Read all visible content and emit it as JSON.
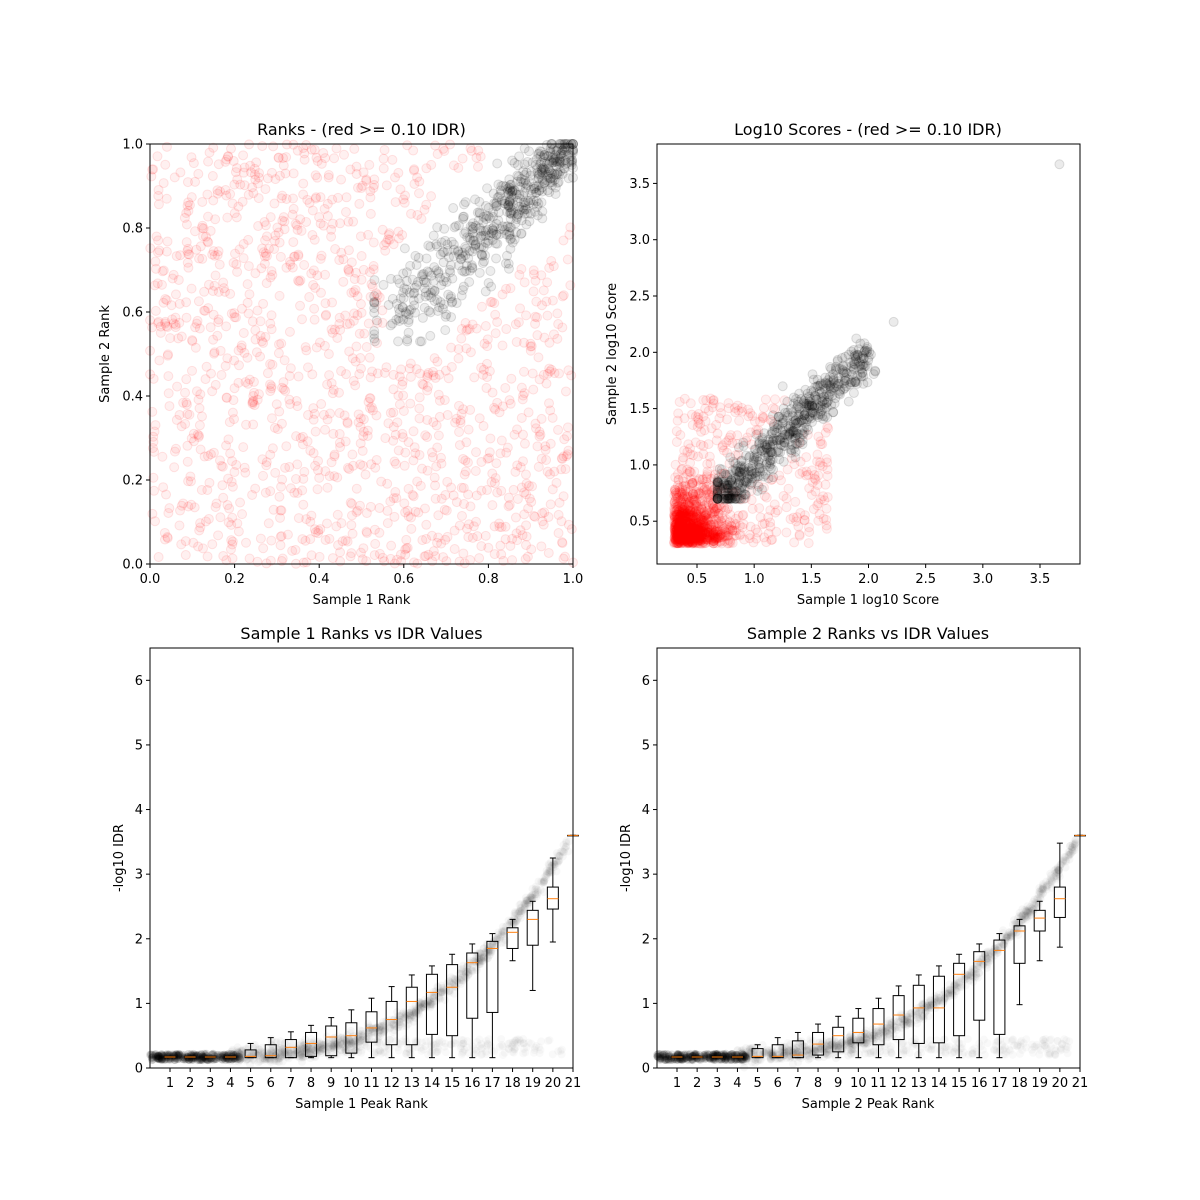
{
  "chart_data": [
    {
      "type": "scatter",
      "title": "Ranks - (red >= 0.10 IDR)",
      "xlabel": "Sample 1 Rank",
      "ylabel": "Sample 2 Rank",
      "xlim": [
        0,
        1
      ],
      "ylim": [
        0,
        1
      ],
      "xticks": [
        "0.0",
        "0.2",
        "0.4",
        "0.6",
        "0.8",
        "1.0"
      ],
      "yticks": [
        "0.0",
        "0.2",
        "0.4",
        "0.6",
        "0.8",
        "1.0"
      ],
      "grid": false,
      "series": [
        {
          "color": "#ff0000",
          "alpha": 0.06,
          "description_values": "scattered uniformly across [0,1]x[0,1] excluding diagonal band",
          "approx_count": 1400
        },
        {
          "color": "#000000",
          "alpha": 0.08,
          "points_from": [
            0.55,
            0.55
          ],
          "points_to": [
            1.0,
            1.0
          ],
          "approx_count": 600
        }
      ]
    },
    {
      "type": "scatter",
      "title": "Log10 Scores - (red >= 0.10 IDR)",
      "xlabel": "Sample 1 log10 Score",
      "ylabel": "Sample 2 log10 Score",
      "xlim": [
        0.15,
        3.85
      ],
      "ylim": [
        0.12,
        3.85
      ],
      "xticks": [
        "0.5",
        "1.0",
        "1.5",
        "2.0",
        "2.5",
        "3.0",
        "3.5"
      ],
      "yticks": [
        "0.5",
        "1.0",
        "1.5",
        "2.0",
        "2.5",
        "3.0",
        "3.5"
      ],
      "grid": false,
      "series": [
        {
          "color": "#ff0000",
          "alpha": 0.06,
          "x_range": [
            0.3,
            2.0
          ],
          "y_range": [
            0.3,
            2.0
          ],
          "dense_near": [
            0.45,
            0.45
          ]
        },
        {
          "color": "#000000",
          "alpha": 0.08,
          "points_from": [
            0.7,
            0.7
          ],
          "points_to": [
            2.0,
            2.0
          ],
          "outliers": [
            [
              2.22,
              2.27
            ],
            [
              3.67,
              3.67
            ]
          ]
        }
      ]
    },
    {
      "type": "box",
      "title": "Sample 1 Ranks vs IDR Values",
      "xlabel": "Sample 1 Peak Rank",
      "ylabel": "-log10 IDR",
      "categories": [
        "1",
        "2",
        "3",
        "4",
        "5",
        "6",
        "7",
        "8",
        "9",
        "10",
        "11",
        "12",
        "13",
        "14",
        "15",
        "16",
        "17",
        "18",
        "19",
        "20",
        "21"
      ],
      "ylim": [
        0,
        6.5
      ],
      "yticks": [
        "0",
        "1",
        "2",
        "3",
        "4",
        "5",
        "6"
      ],
      "boxes": [
        {
          "whislo": 0.16,
          "q1": 0.16,
          "med": 0.17,
          "q3": 0.18,
          "whishi": 0.18
        },
        {
          "whislo": 0.16,
          "q1": 0.16,
          "med": 0.17,
          "q3": 0.18,
          "whishi": 0.18
        },
        {
          "whislo": 0.16,
          "q1": 0.16,
          "med": 0.17,
          "q3": 0.18,
          "whishi": 0.18
        },
        {
          "whislo": 0.16,
          "q1": 0.16,
          "med": 0.17,
          "q3": 0.18,
          "whishi": 0.18
        },
        {
          "whislo": 0.16,
          "q1": 0.16,
          "med": 0.18,
          "q3": 0.28,
          "whishi": 0.38
        },
        {
          "whislo": 0.16,
          "q1": 0.16,
          "med": 0.19,
          "q3": 0.36,
          "whishi": 0.47
        },
        {
          "whislo": 0.16,
          "q1": 0.16,
          "med": 0.32,
          "q3": 0.44,
          "whishi": 0.56
        },
        {
          "whislo": 0.16,
          "q1": 0.18,
          "med": 0.38,
          "q3": 0.55,
          "whishi": 0.66
        },
        {
          "whislo": 0.16,
          "q1": 0.19,
          "med": 0.48,
          "q3": 0.65,
          "whishi": 0.78
        },
        {
          "whislo": 0.16,
          "q1": 0.23,
          "med": 0.5,
          "q3": 0.7,
          "whishi": 0.9
        },
        {
          "whislo": 0.16,
          "q1": 0.4,
          "med": 0.62,
          "q3": 0.87,
          "whishi": 1.08
        },
        {
          "whislo": 0.16,
          "q1": 0.36,
          "med": 0.75,
          "q3": 1.03,
          "whishi": 1.26
        },
        {
          "whislo": 0.16,
          "q1": 0.36,
          "med": 1.03,
          "q3": 1.25,
          "whishi": 1.44
        },
        {
          "whislo": 0.16,
          "q1": 0.52,
          "med": 1.17,
          "q3": 1.45,
          "whishi": 1.58
        },
        {
          "whislo": 0.16,
          "q1": 0.5,
          "med": 1.25,
          "q3": 1.6,
          "whishi": 1.76
        },
        {
          "whislo": 0.16,
          "q1": 0.77,
          "med": 1.63,
          "q3": 1.78,
          "whishi": 1.92
        },
        {
          "whislo": 0.16,
          "q1": 0.86,
          "med": 1.85,
          "q3": 1.96,
          "whishi": 2.08
        },
        {
          "whislo": 1.66,
          "q1": 1.85,
          "med": 2.1,
          "q3": 2.17,
          "whishi": 2.3
        },
        {
          "whislo": 1.2,
          "q1": 1.9,
          "med": 2.3,
          "q3": 2.44,
          "whishi": 2.58
        },
        {
          "whislo": 1.95,
          "q1": 2.46,
          "med": 2.62,
          "q3": 2.8,
          "whishi": 3.25
        },
        {
          "whislo": 3.6,
          "q1": 3.6,
          "med": 3.6,
          "q3": 3.6,
          "whishi": 3.6
        }
      ]
    },
    {
      "type": "box",
      "title": "Sample 2 Ranks vs IDR Values",
      "xlabel": "Sample 2 Peak Rank",
      "ylabel": "-log10 IDR",
      "categories": [
        "1",
        "2",
        "3",
        "4",
        "5",
        "6",
        "7",
        "8",
        "9",
        "10",
        "11",
        "12",
        "13",
        "14",
        "15",
        "16",
        "17",
        "18",
        "19",
        "20",
        "21"
      ],
      "ylim": [
        0,
        6.5
      ],
      "yticks": [
        "0",
        "1",
        "2",
        "3",
        "4",
        "5",
        "6"
      ],
      "boxes": [
        {
          "whislo": 0.16,
          "q1": 0.16,
          "med": 0.17,
          "q3": 0.18,
          "whishi": 0.18
        },
        {
          "whislo": 0.16,
          "q1": 0.16,
          "med": 0.17,
          "q3": 0.18,
          "whishi": 0.18
        },
        {
          "whislo": 0.16,
          "q1": 0.16,
          "med": 0.17,
          "q3": 0.18,
          "whishi": 0.18
        },
        {
          "whislo": 0.16,
          "q1": 0.16,
          "med": 0.17,
          "q3": 0.18,
          "whishi": 0.18
        },
        {
          "whislo": 0.16,
          "q1": 0.16,
          "med": 0.18,
          "q3": 0.3,
          "whishi": 0.36
        },
        {
          "whislo": 0.16,
          "q1": 0.16,
          "med": 0.18,
          "q3": 0.36,
          "whishi": 0.47
        },
        {
          "whislo": 0.16,
          "q1": 0.16,
          "med": 0.2,
          "q3": 0.42,
          "whishi": 0.55
        },
        {
          "whislo": 0.16,
          "q1": 0.2,
          "med": 0.37,
          "q3": 0.55,
          "whishi": 0.68
        },
        {
          "whislo": 0.16,
          "q1": 0.25,
          "med": 0.5,
          "q3": 0.63,
          "whishi": 0.8
        },
        {
          "whislo": 0.16,
          "q1": 0.39,
          "med": 0.55,
          "q3": 0.77,
          "whishi": 0.92
        },
        {
          "whislo": 0.16,
          "q1": 0.36,
          "med": 0.68,
          "q3": 0.92,
          "whishi": 1.08
        },
        {
          "whislo": 0.16,
          "q1": 0.44,
          "med": 0.82,
          "q3": 1.12,
          "whishi": 1.27
        },
        {
          "whislo": 0.16,
          "q1": 0.38,
          "med": 0.93,
          "q3": 1.28,
          "whishi": 1.44
        },
        {
          "whislo": 0.16,
          "q1": 0.39,
          "med": 0.93,
          "q3": 1.42,
          "whishi": 1.58
        },
        {
          "whislo": 0.16,
          "q1": 0.5,
          "med": 1.45,
          "q3": 1.62,
          "whishi": 1.76
        },
        {
          "whislo": 0.16,
          "q1": 0.74,
          "med": 1.65,
          "q3": 1.8,
          "whishi": 1.92
        },
        {
          "whislo": 0.16,
          "q1": 0.52,
          "med": 1.82,
          "q3": 1.98,
          "whishi": 2.08
        },
        {
          "whislo": 0.98,
          "q1": 1.62,
          "med": 2.12,
          "q3": 2.2,
          "whishi": 2.3
        },
        {
          "whislo": 1.66,
          "q1": 2.12,
          "med": 2.32,
          "q3": 2.44,
          "whishi": 2.58
        },
        {
          "whislo": 1.87,
          "q1": 2.33,
          "med": 2.62,
          "q3": 2.8,
          "whishi": 3.48
        },
        {
          "whislo": 3.6,
          "q1": 3.6,
          "med": 3.6,
          "q3": 3.6,
          "whishi": 3.6
        }
      ]
    }
  ]
}
